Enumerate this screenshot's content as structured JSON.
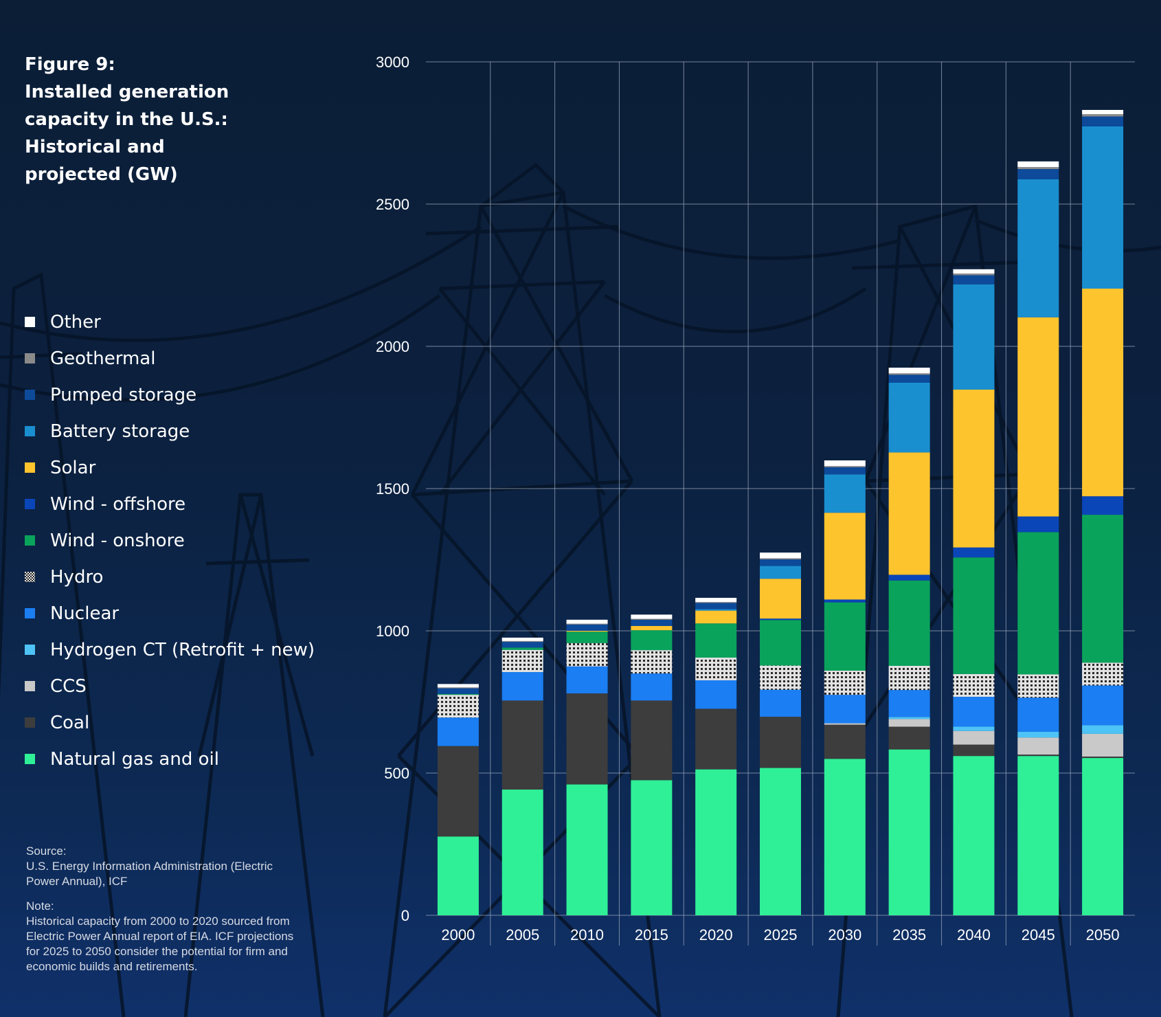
{
  "title_lines": [
    "Figure 9:",
    "Installed generation",
    "capacity in the U.S.:",
    "Historical and",
    "projected (GW)"
  ],
  "legend": [
    {
      "label": "Other",
      "color": "#ffffff",
      "icon": "square"
    },
    {
      "label": "Geothermal",
      "color": "#8a8a8a",
      "icon": "square"
    },
    {
      "label": "Pumped storage",
      "color": "#0d4a9a",
      "icon": "square"
    },
    {
      "label": "Battery storage",
      "color": "#1a8fd0",
      "icon": "square"
    },
    {
      "label": "Solar",
      "color": "#fec42e",
      "icon": "square"
    },
    {
      "label": "Wind - offshore",
      "color": "#0a46b8",
      "icon": "square"
    },
    {
      "label": "Wind - onshore",
      "color": "#0aa35c",
      "icon": "square"
    },
    {
      "label": "Hydro",
      "color": "#e2e2e2",
      "icon": "dotted-square"
    },
    {
      "label": "Nuclear",
      "color": "#1b7ef2",
      "icon": "square"
    },
    {
      "label": "Hydrogen CT (Retrofit + new)",
      "color": "#4ec3f5",
      "icon": "square"
    },
    {
      "label": "CCS",
      "color": "#c9c9c9",
      "icon": "square"
    },
    {
      "label": "Coal",
      "color": "#3d3d3d",
      "icon": "square"
    },
    {
      "label": "Natural gas and oil",
      "color": "#2ff097",
      "icon": "square"
    }
  ],
  "notes": {
    "source_heading": "Source:",
    "source_lines": [
      "U.S. Energy Information Administration (Electric",
      "Power Annual), ICF"
    ],
    "note_heading": "Note:",
    "note_lines": [
      "Historical capacity from 2000 to 2020 sourced from",
      "Electric Power Annual report of EIA. ICF projections",
      "for 2025 to 2050 consider the potential for firm and",
      "economic builds and retirements."
    ]
  },
  "chart_data": {
    "type": "bar",
    "stacked": true,
    "title": "Installed generation capacity in the U.S.: Historical and projected (GW)",
    "categories": [
      "2000",
      "2005",
      "2010",
      "2015",
      "2020",
      "2025",
      "2030",
      "2035",
      "2040",
      "2045",
      "2050"
    ],
    "ylim": [
      0,
      3000
    ],
    "yticks": [
      0,
      500,
      1000,
      1500,
      2000,
      2500,
      3000
    ],
    "grid": true,
    "legend_position": "left",
    "series": [
      {
        "name": "Natural gas and oil",
        "color": "#2ff097",
        "values": [
          277,
          442,
          460,
          475,
          513,
          518,
          550,
          583,
          560,
          560,
          553
        ]
      },
      {
        "name": "Coal",
        "color": "#3d3d3d",
        "values": [
          318,
          313,
          320,
          280,
          213,
          180,
          120,
          80,
          40,
          5,
          5
        ]
      },
      {
        "name": "CCS",
        "color": "#c9c9c9",
        "values": [
          0,
          0,
          0,
          0,
          0,
          0,
          5,
          27,
          48,
          60,
          80
        ]
      },
      {
        "name": "Hydrogen CT (Retrofit + new)",
        "color": "#4ec3f5",
        "values": [
          0,
          0,
          0,
          0,
          0,
          0,
          0,
          7,
          15,
          20,
          30
        ]
      },
      {
        "name": "Nuclear",
        "color": "#1b7ef2",
        "values": [
          100,
          100,
          95,
          95,
          100,
          95,
          100,
          95,
          105,
          120,
          140
        ]
      },
      {
        "name": "Hydro",
        "color": "#e2e2e2",
        "values": [
          80,
          78,
          82,
          82,
          80,
          85,
          85,
          85,
          80,
          82,
          80
        ]
      },
      {
        "name": "Wind - onshore",
        "color": "#0aa35c",
        "values": [
          3,
          8,
          40,
          70,
          120,
          160,
          240,
          300,
          410,
          500,
          520
        ]
      },
      {
        "name": "Wind - offshore",
        "color": "#0a46b8",
        "values": [
          0,
          0,
          0,
          0,
          0,
          5,
          10,
          20,
          35,
          55,
          65
        ]
      },
      {
        "name": "Solar",
        "color": "#fec42e",
        "values": [
          0,
          0,
          3,
          15,
          45,
          140,
          305,
          430,
          555,
          700,
          730
        ]
      },
      {
        "name": "Battery storage",
        "color": "#1a8fd0",
        "values": [
          0,
          0,
          0,
          0,
          5,
          45,
          135,
          245,
          370,
          485,
          570
        ]
      },
      {
        "name": "Pumped storage",
        "color": "#0d4a9a",
        "values": [
          20,
          20,
          22,
          22,
          22,
          23,
          25,
          28,
          32,
          36,
          35
        ]
      },
      {
        "name": "Geothermal",
        "color": "#8a8a8a",
        "values": [
          3,
          3,
          3,
          3,
          3,
          4,
          4,
          5,
          6,
          7,
          8
        ]
      },
      {
        "name": "Other",
        "color": "#ffffff",
        "values": [
          12,
          12,
          14,
          15,
          15,
          20,
          20,
          20,
          15,
          20,
          15
        ]
      }
    ]
  }
}
